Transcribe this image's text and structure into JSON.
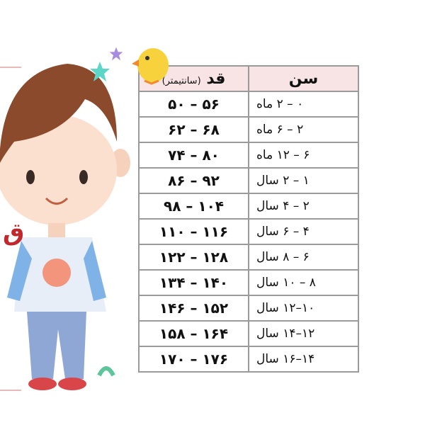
{
  "brand_letter": "ق",
  "table": {
    "header_age": "سن",
    "header_height": "قد",
    "header_height_unit": "(سانتیمتر)",
    "rows": [
      {
        "age": "۰ – ۲ ماه",
        "height": "۵۶ – ۵۰"
      },
      {
        "age": "۲ – ۶ ماه",
        "height": "۶۸ – ۶۲"
      },
      {
        "age": "۶ – ۱۲ ماه",
        "height": "۸۰ – ۷۴"
      },
      {
        "age": "۱ – ۲ سال",
        "height": "۹۲ – ۸۶"
      },
      {
        "age": "۲ – ۴ سال",
        "height": "۱۰۴ – ۹۸"
      },
      {
        "age": "۴ – ۶ سال",
        "height": "۱۱۶ – ۱۱۰"
      },
      {
        "age": "۶ – ۸ سال",
        "height": "۱۲۸ – ۱۲۲"
      },
      {
        "age": "۸ – ۱۰ سال",
        "height": "۱۴۰ – ۱۳۴"
      },
      {
        "age": "۱۰–۱۲ سال",
        "height": "۱۵۲ – ۱۴۶"
      },
      {
        "age": "۱۲–۱۴ سال",
        "height": "۱۶۴ – ۱۵۸"
      },
      {
        "age": "۱۴–۱۶ سال",
        "height": "۱۷۶ – ۱۷۰"
      }
    ]
  },
  "colors": {
    "header_bg": "#f8e4e4",
    "brand": "#c0282d",
    "border": "#9a9a9a"
  }
}
